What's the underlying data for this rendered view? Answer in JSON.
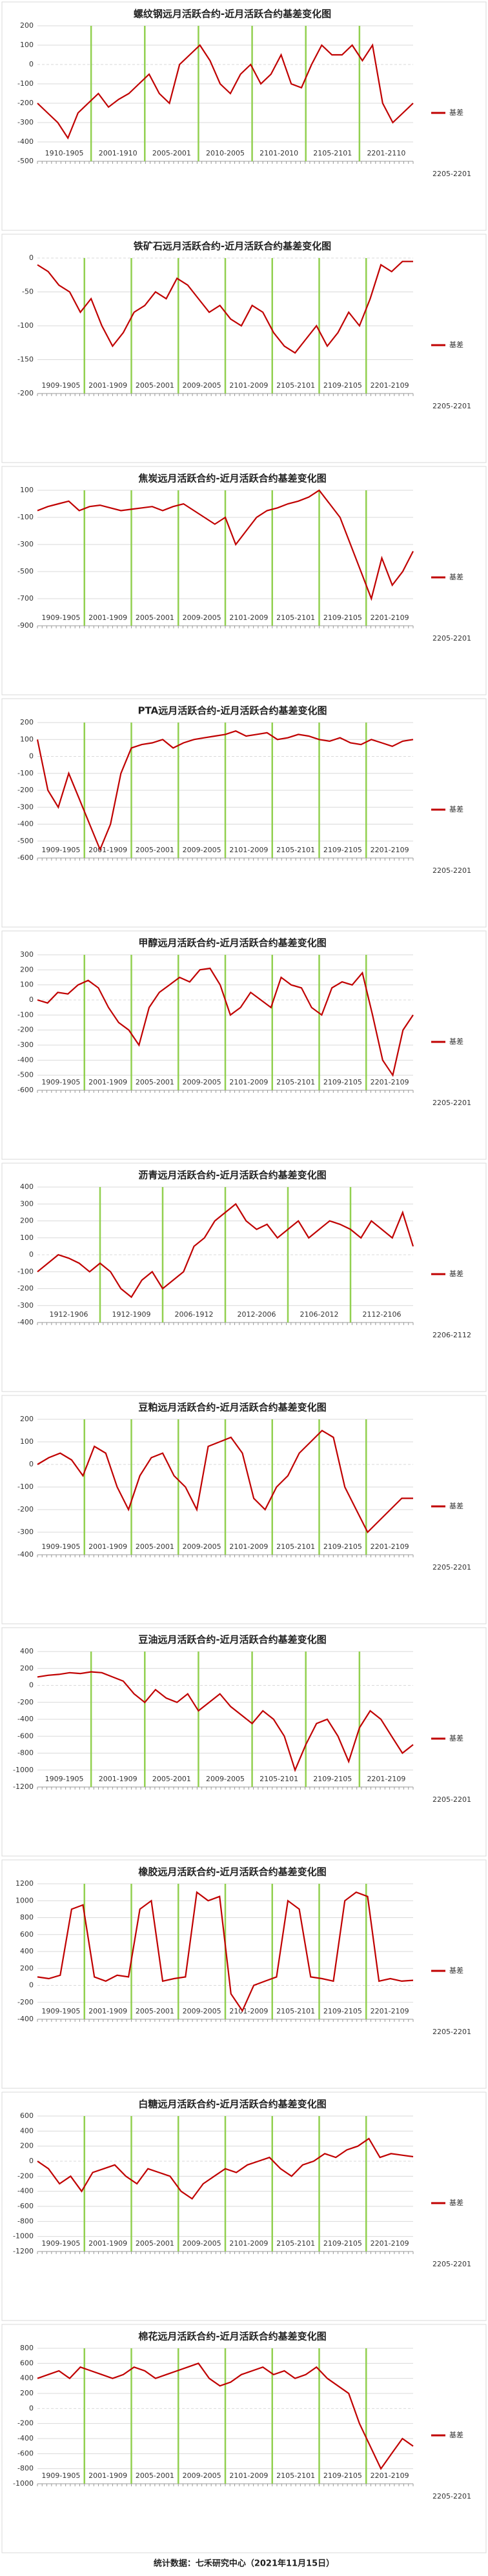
{
  "chart_data": [
    {
      "type": "line",
      "title": "螺纹钢远月活跃合约-近月活跃合约基差变化图",
      "ylim": [
        -500,
        200
      ],
      "yticks": [
        200,
        100,
        0,
        -100,
        -200,
        -300,
        -400,
        -500
      ],
      "grid": true,
      "annotations": [
        "1910-1905",
        "2001-1910",
        "2005-2001",
        "2010-2005",
        "2101-2010",
        "2105-2101",
        "2201-2110",
        "2205-2201"
      ],
      "series": [
        {
          "name": "基差",
          "color": "#c00000",
          "values": [
            -200,
            -250,
            -300,
            -380,
            -250,
            -200,
            -150,
            -220,
            -180,
            -150,
            -100,
            -50,
            -150,
            -200,
            0,
            50,
            100,
            20,
            -100,
            -150,
            -50,
            0,
            -100,
            -50,
            50,
            -100,
            -120,
            0,
            100,
            50,
            50,
            100,
            20,
            100,
            -200,
            -300,
            -250,
            -200
          ]
        }
      ]
    },
    {
      "type": "line",
      "title": "铁矿石远月活跃合约-近月活跃合约基差变化图",
      "ylim": [
        -200,
        0
      ],
      "yticks": [
        0,
        -50,
        -100,
        -150,
        -200
      ],
      "grid": true,
      "annotations": [
        "1909-1905",
        "2001-1909",
        "2005-2001",
        "2009-2005",
        "2101-2009",
        "2105-2101",
        "2109-2105",
        "2201-2109",
        "2205-2201"
      ],
      "series": [
        {
          "name": "基差",
          "color": "#c00000",
          "values": [
            -10,
            -20,
            -40,
            -50,
            -80,
            -60,
            -100,
            -130,
            -110,
            -80,
            -70,
            -50,
            -60,
            -30,
            -40,
            -60,
            -80,
            -70,
            -90,
            -100,
            -70,
            -80,
            -110,
            -130,
            -140,
            -120,
            -100,
            -130,
            -110,
            -80,
            -100,
            -60,
            -10,
            -20,
            -5,
            -5
          ]
        }
      ]
    },
    {
      "type": "line",
      "title": "焦炭远月活跃合约-近月活跃合约基差变化图",
      "ylim": [
        -900,
        100
      ],
      "yticks": [
        100,
        -100,
        -300,
        -500,
        -700,
        -900
      ],
      "grid": true,
      "annotations": [
        "1909-1905",
        "2001-1909",
        "2005-2001",
        "2009-2005",
        "2101-2009",
        "2105-2101",
        "2109-2105",
        "2201-2109",
        "2205-2201"
      ],
      "series": [
        {
          "name": "基差",
          "color": "#c00000",
          "values": [
            -50,
            -20,
            0,
            20,
            -50,
            -20,
            -10,
            -30,
            -50,
            -40,
            -30,
            -20,
            -50,
            -20,
            0,
            -50,
            -100,
            -150,
            -100,
            -300,
            -200,
            -100,
            -50,
            -30,
            0,
            20,
            50,
            100,
            0,
            -100,
            -300,
            -500,
            -700,
            -400,
            -600,
            -500,
            -350
          ]
        }
      ]
    },
    {
      "type": "line",
      "title": "PTA远月活跃合约-近月活跃合约基差变化图",
      "ylim": [
        -600,
        200
      ],
      "yticks": [
        200,
        100,
        0,
        -100,
        -200,
        -300,
        -400,
        -500,
        -600
      ],
      "grid": true,
      "annotations": [
        "1909-1905",
        "2001-1909",
        "2005-2001",
        "2009-2005",
        "2101-2009",
        "2105-2101",
        "2109-2105",
        "2201-2109",
        "2205-2201"
      ],
      "series": [
        {
          "name": "基差",
          "color": "#c00000",
          "values": [
            100,
            -200,
            -300,
            -100,
            -250,
            -400,
            -550,
            -400,
            -100,
            50,
            70,
            80,
            100,
            50,
            80,
            100,
            110,
            120,
            130,
            150,
            120,
            130,
            140,
            100,
            110,
            130,
            120,
            100,
            90,
            110,
            80,
            70,
            100,
            80,
            60,
            90,
            100
          ]
        }
      ]
    },
    {
      "type": "line",
      "title": "甲醇远月活跃合约-近月活跃合约基差变化图",
      "ylim": [
        -600,
        300
      ],
      "yticks": [
        300,
        200,
        100,
        0,
        -100,
        -200,
        -300,
        -400,
        -500,
        -600
      ],
      "grid": true,
      "annotations": [
        "1909-1905",
        "2001-1909",
        "2005-2001",
        "2009-2005",
        "2101-2009",
        "2105-2101",
        "2109-2105",
        "2201-2109",
        "2205-2201"
      ],
      "series": [
        {
          "name": "基差",
          "color": "#c00000",
          "values": [
            0,
            -20,
            50,
            40,
            100,
            130,
            80,
            -50,
            -150,
            -200,
            -300,
            -50,
            50,
            100,
            150,
            120,
            200,
            210,
            100,
            -100,
            -50,
            50,
            0,
            -50,
            150,
            100,
            80,
            -50,
            -100,
            80,
            120,
            100,
            180,
            -100,
            -400,
            -500,
            -200,
            -100
          ]
        }
      ]
    },
    {
      "type": "line",
      "title": "沥青远月活跃合约-近月活跃合约基差变化图",
      "ylim": [
        -400,
        400
      ],
      "yticks": [
        400,
        300,
        200,
        100,
        0,
        -100,
        -200,
        -300,
        -400
      ],
      "grid": true,
      "annotations": [
        "1912-1906",
        "1912-1909",
        "2006-1912",
        "2012-2006",
        "2106-2012",
        "2112-2106",
        "2206-2112"
      ],
      "series": [
        {
          "name": "基差",
          "color": "#c00000",
          "values": [
            -100,
            -50,
            0,
            -20,
            -50,
            -100,
            -50,
            -100,
            -200,
            -250,
            -150,
            -100,
            -200,
            -150,
            -100,
            50,
            100,
            200,
            250,
            300,
            200,
            150,
            180,
            100,
            150,
            200,
            100,
            150,
            200,
            180,
            150,
            100,
            200,
            150,
            100,
            250,
            50
          ]
        }
      ]
    },
    {
      "type": "line",
      "title": "豆粕远月活跃合约-近月活跃合约基差变化图",
      "ylim": [
        -400,
        200
      ],
      "yticks": [
        200,
        100,
        0,
        -100,
        -200,
        -300,
        -400
      ],
      "grid": true,
      "annotations": [
        "1909-1905",
        "2001-1909",
        "2005-2001",
        "2009-2005",
        "2101-2009",
        "2105-2101",
        "2109-2105",
        "2201-2109",
        "2205-2201"
      ],
      "series": [
        {
          "name": "基差",
          "color": "#c00000",
          "values": [
            0,
            30,
            50,
            20,
            -50,
            80,
            50,
            -100,
            -200,
            -50,
            30,
            50,
            -50,
            -100,
            -200,
            80,
            100,
            120,
            50,
            -150,
            -200,
            -100,
            -50,
            50,
            100,
            150,
            120,
            -100,
            -200,
            -300,
            -250,
            -200,
            -150,
            -150
          ]
        }
      ]
    },
    {
      "type": "line",
      "title": "豆油远月活跃合约-近月活跃合约基差变化图",
      "ylim": [
        -1200,
        400
      ],
      "yticks": [
        400,
        200,
        0,
        -200,
        -400,
        -600,
        -800,
        -1000,
        -1200
      ],
      "grid": true,
      "annotations": [
        "1909-1905",
        "2001-1909",
        "2005-2001",
        "2009-2005",
        "2105-2101",
        "2109-2105",
        "2201-2109",
        "2205-2201"
      ],
      "series": [
        {
          "name": "基差",
          "color": "#c00000",
          "values": [
            100,
            120,
            130,
            150,
            140,
            160,
            150,
            100,
            50,
            -100,
            -200,
            -50,
            -150,
            -200,
            -100,
            -300,
            -200,
            -100,
            -250,
            -350,
            -450,
            -300,
            -400,
            -600,
            -1000,
            -700,
            -450,
            -400,
            -600,
            -900,
            -500,
            -300,
            -400,
            -600,
            -800,
            -700
          ]
        }
      ]
    },
    {
      "type": "line",
      "title": "橡胶远月活跃合约-近月活跃合约基差变化图",
      "ylim": [
        -400,
        1200
      ],
      "yticks": [
        1200,
        1000,
        800,
        600,
        400,
        200,
        0,
        -200,
        -400
      ],
      "grid": true,
      "annotations": [
        "1909-1905",
        "2001-1909",
        "2005-2001",
        "2009-2005",
        "2101-2009",
        "2105-2101",
        "2109-2105",
        "2201-2109",
        "2205-2201"
      ],
      "series": [
        {
          "name": "基差",
          "color": "#c00000",
          "values": [
            100,
            80,
            120,
            900,
            950,
            100,
            50,
            120,
            100,
            900,
            1000,
            50,
            80,
            100,
            1100,
            1000,
            1050,
            -100,
            -300,
            0,
            50,
            100,
            1000,
            900,
            100,
            80,
            50,
            1000,
            1100,
            1050,
            50,
            80,
            50,
            60
          ]
        }
      ]
    },
    {
      "type": "line",
      "title": "白糖远月活跃合约-近月活跃合约基差变化图",
      "ylim": [
        -1200,
        600
      ],
      "yticks": [
        600,
        400,
        200,
        0,
        -200,
        -400,
        -600,
        -800,
        -1000,
        -1200
      ],
      "grid": true,
      "annotations": [
        "1909-1905",
        "2001-1909",
        "2005-2001",
        "2009-2005",
        "2101-2009",
        "2105-2101",
        "2109-2105",
        "2201-2109",
        "2205-2201"
      ],
      "series": [
        {
          "name": "基差",
          "color": "#c00000",
          "values": [
            0,
            -100,
            -300,
            -200,
            -400,
            -150,
            -100,
            -50,
            -200,
            -300,
            -100,
            -150,
            -200,
            -400,
            -500,
            -300,
            -200,
            -100,
            -150,
            -50,
            0,
            50,
            -100,
            -200,
            -50,
            0,
            100,
            50,
            150,
            200,
            300,
            50,
            100,
            80,
            60
          ]
        }
      ]
    },
    {
      "type": "line",
      "title": "棉花远月活跃合约-近月活跃合约基差变化图",
      "ylim": [
        -1000,
        800
      ],
      "yticks": [
        800,
        600,
        400,
        200,
        0,
        -200,
        -400,
        -600,
        -800,
        -1000
      ],
      "grid": true,
      "annotations": [
        "1909-1905",
        "2001-1909",
        "2005-2001",
        "2009-2005",
        "2101-2009",
        "2105-2101",
        "2109-2105",
        "2201-2109",
        "2205-2201"
      ],
      "series": [
        {
          "name": "基差",
          "color": "#c00000",
          "values": [
            400,
            450,
            500,
            400,
            550,
            500,
            450,
            400,
            450,
            550,
            500,
            400,
            450,
            500,
            550,
            600,
            400,
            300,
            350,
            450,
            500,
            550,
            450,
            500,
            400,
            450,
            550,
            400,
            300,
            200,
            -200,
            -500,
            -800,
            -600,
            -400,
            -500
          ]
        }
      ]
    }
  ],
  "footer": "统计数据：七禾研究中心（2021年11月15日）"
}
